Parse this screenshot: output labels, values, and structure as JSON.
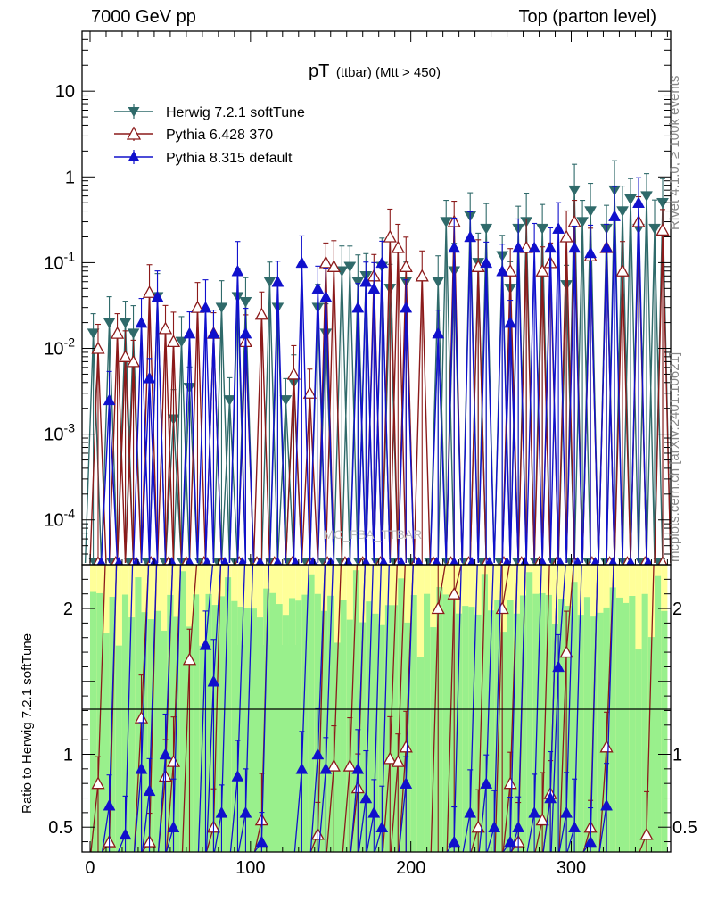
{
  "header": {
    "left": "7000 GeV pp",
    "right": "Top (parton level)"
  },
  "side_labels": {
    "rivet": "Rivet 4.1.0, ≥ 100k events",
    "mcplots": "mcplots.cern.ch [arXiv:2401.10621]"
  },
  "ratio_ylabel": "Ratio to Herwig 7.2.1 softTune",
  "watermark": "MC_FBA_TTBAR",
  "chart_data": {
    "type": "line",
    "title": "pT (ttbar) (Mtt > 450)",
    "title_main": "pT",
    "title_sub": "(ttbar) (Mtt > 450)",
    "xlabel": "",
    "ylabel": "",
    "xlim": [
      -5,
      362
    ],
    "ylim": [
      3e-05,
      50
    ],
    "yscale": "log",
    "ratio_ylim": [
      0.33,
      2.3
    ],
    "x_ticks": [
      0,
      100,
      200,
      300
    ],
    "x_tick_labels": [
      "0",
      "100",
      "200",
      "300"
    ],
    "y_ticks": [
      0.0001,
      0.001,
      0.01,
      0.1,
      1,
      10
    ],
    "y_tick_labels": [
      "10^-4",
      "10^-3",
      "10^-2",
      "10^-1",
      "1",
      "10"
    ],
    "ratio_ticks": [
      0.5,
      1,
      2
    ],
    "ratio_tick_labels": [
      "0.5",
      "1",
      "2"
    ],
    "legend_position": "top-left",
    "series": [
      {
        "name": "Herwig 7.2.1 softTune",
        "color": "#2f6a6a",
        "marker": "triangle-down",
        "x": [
          2,
          12,
          22,
          27,
          42,
          52,
          57,
          62,
          82,
          87,
          92,
          97,
          112,
          117,
          122,
          127,
          142,
          147,
          157,
          162,
          167,
          172,
          182,
          187,
          197,
          217,
          222,
          227,
          237,
          242,
          247,
          257,
          262,
          267,
          272,
          282,
          297,
          302,
          307,
          312,
          322,
          327,
          332,
          337,
          342,
          347,
          352,
          357
        ],
        "values": [
          0.015,
          0.02,
          0.02,
          0.015,
          0.04,
          0.0015,
          0.012,
          0.0035,
          0.03,
          0.0025,
          0.04,
          0.035,
          0.06,
          0.03,
          0.0025,
          0.004,
          0.03,
          0.015,
          0.08,
          0.09,
          0.06,
          0.07,
          0.09,
          0.05,
          0.06,
          0.06,
          0.3,
          0.08,
          0.35,
          0.1,
          0.25,
          0.12,
          0.05,
          0.25,
          0.3,
          0.25,
          0.055,
          0.7,
          0.3,
          0.4,
          0.25,
          0.7,
          0.4,
          0.55,
          0.25,
          0.6,
          0.25,
          0.5
        ]
      },
      {
        "name": "Pythia 6.428 370",
        "color": "#8b1a1a",
        "marker": "triangle-up-open",
        "x": [
          5,
          17,
          22,
          27,
          37,
          47,
          52,
          67,
          77,
          97,
          107,
          127,
          137,
          147,
          152,
          177,
          187,
          192,
          197,
          207,
          227,
          242,
          262,
          272,
          282,
          287,
          297,
          302,
          312,
          322,
          332,
          342,
          357
        ],
        "values": [
          0.01,
          0.015,
          0.008,
          0.007,
          0.045,
          0.017,
          0.012,
          0.03,
          0.015,
          0.012,
          0.025,
          0.005,
          0.003,
          0.1,
          0.09,
          0.07,
          0.2,
          0.15,
          0.09,
          0.07,
          0.3,
          0.09,
          0.08,
          0.15,
          0.08,
          0.1,
          0.2,
          0.3,
          0.12,
          0.15,
          0.08,
          0.3,
          0.24
        ]
      },
      {
        "name": "Pythia 8.315 default",
        "color": "#1010cc",
        "marker": "triangle-up",
        "x": [
          12,
          32,
          37,
          42,
          62,
          72,
          77,
          92,
          97,
          117,
          132,
          142,
          147,
          167,
          172,
          177,
          182,
          197,
          217,
          227,
          237,
          247,
          257,
          262,
          267,
          277,
          287,
          292,
          302,
          312,
          322,
          327,
          342
        ],
        "values": [
          0.0025,
          0.02,
          0.0045,
          0.04,
          0.015,
          0.03,
          0.015,
          0.08,
          0.015,
          0.06,
          0.1,
          0.05,
          0.04,
          0.03,
          0.06,
          0.05,
          0.1,
          0.03,
          0.015,
          0.15,
          0.2,
          0.1,
          0.08,
          0.02,
          0.15,
          0.15,
          0.15,
          0.25,
          0.15,
          0.13,
          0.15,
          0.35,
          0.5
        ]
      }
    ],
    "ratio_series": [
      {
        "name": "Pythia 6.428 370",
        "x": [
          5,
          12,
          32,
          37,
          47,
          52,
          62,
          77,
          107,
          142,
          152,
          162,
          167,
          187,
          192,
          197,
          217,
          227,
          242,
          257,
          262,
          267,
          282,
          287,
          297,
          312,
          322,
          347
        ],
        "values": [
          0.8,
          0.4,
          1.25,
          0.4,
          0.85,
          0.95,
          1.65,
          0.5,
          0.55,
          0.45,
          0.92,
          0.92,
          0.77,
          0.97,
          0.95,
          1.05,
          2.0,
          2.1,
          0.5,
          2.0,
          0.8,
          0.4,
          0.55,
          0.73,
          1.7,
          0.5,
          1.05,
          0.45
        ]
      },
      {
        "name": "Pythia 8.315 default",
        "x": [
          12,
          22,
          32,
          37,
          47,
          52,
          72,
          77,
          82,
          92,
          97,
          107,
          132,
          142,
          147,
          167,
          172,
          177,
          182,
          197,
          227,
          237,
          247,
          252,
          262,
          267,
          277,
          287,
          292,
          297,
          302,
          312,
          322
        ],
        "values": [
          0.65,
          0.45,
          0.9,
          0.75,
          1.0,
          0.5,
          1.75,
          1.5,
          0.6,
          0.85,
          0.6,
          0.4,
          0.9,
          1.0,
          0.9,
          0.9,
          0.7,
          0.6,
          0.5,
          0.8,
          0.4,
          0.6,
          0.8,
          0.5,
          0.4,
          0.5,
          0.6,
          0.7,
          1.6,
          0.6,
          0.5,
          0.4,
          0.65
        ]
      }
    ]
  }
}
